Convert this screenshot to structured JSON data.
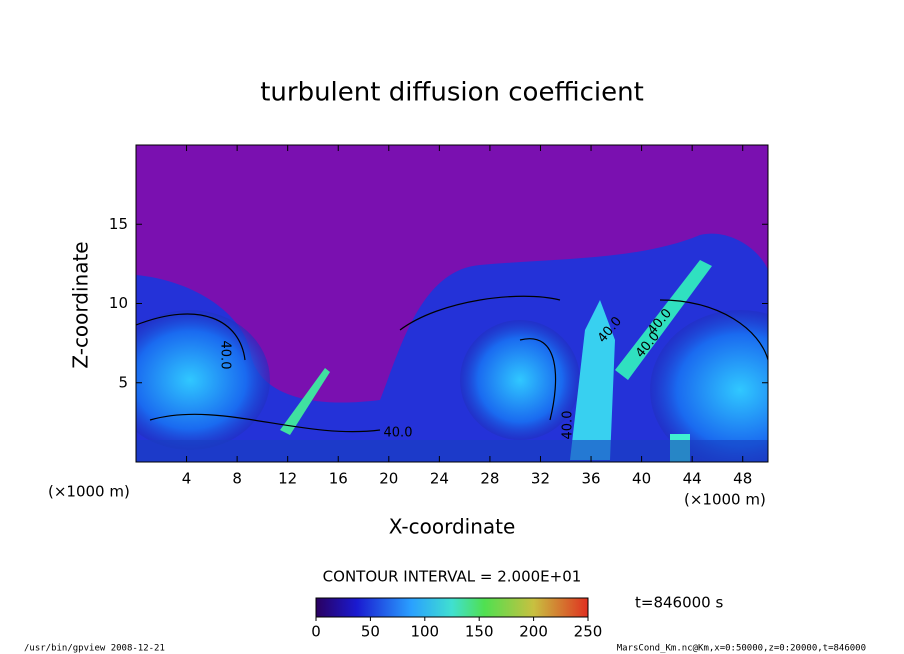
{
  "chart_data": {
    "type": "contour",
    "title": "turbulent diffusion coefficient",
    "xlabel": "X-coordinate",
    "ylabel": "Z-coordinate",
    "xunit_left": "(×1000 m)",
    "xunit_right": "(×1000 m)",
    "xlim": [
      0,
      50
    ],
    "ylim": [
      0,
      20
    ],
    "xticks": [
      4,
      8,
      12,
      16,
      20,
      24,
      28,
      32,
      36,
      40,
      44,
      48
    ],
    "yticks": [
      5,
      10,
      15
    ],
    "contour_interval": "CONTOUR INTERVAL = 2.000E+01",
    "contour_labels": [
      "40.0",
      "40.0",
      "40.0",
      "40.0",
      "40.0",
      "40.0"
    ],
    "colorbar": {
      "lim": [
        0,
        250
      ],
      "ticks": [
        0,
        50,
        100,
        150,
        200,
        250
      ]
    },
    "time_label": "t=846000 s",
    "footer_left": "/usr/bin/gpview  2008-12-21",
    "footer_right": "MarsCond_Km.nc@Km,x=0:50000,z=0:20000,t=846000"
  }
}
